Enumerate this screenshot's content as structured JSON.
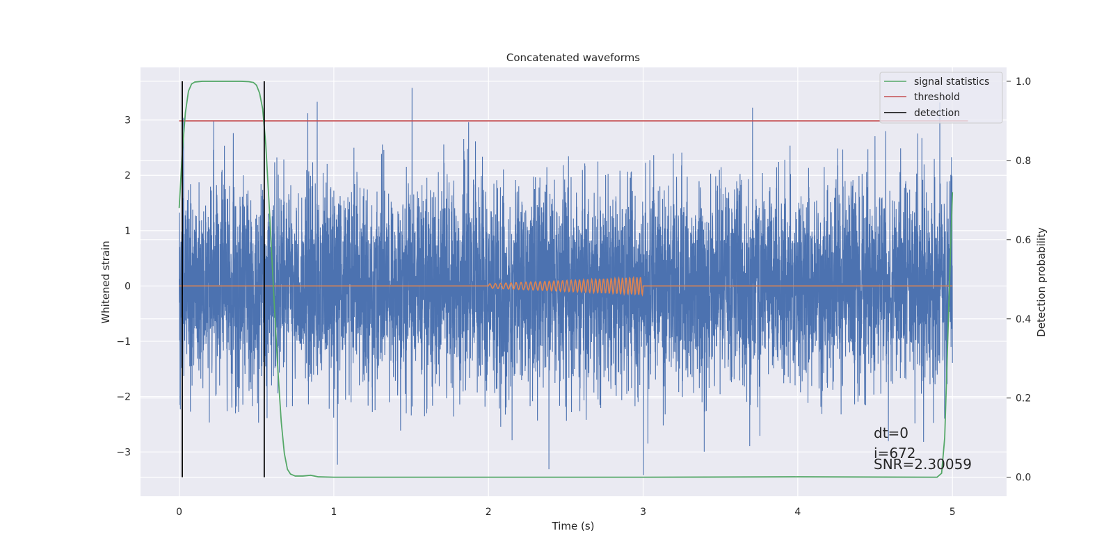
{
  "chart_data": {
    "type": "line",
    "title": "Concatenated waveforms",
    "xlabel": "Time (s)",
    "ylabel": "Whitened strain",
    "y2label": "Detection probability",
    "xlim": [
      -0.25,
      5.35
    ],
    "ylim": [
      -3.8,
      3.95
    ],
    "y2lim": [
      -0.048,
      1.035
    ],
    "xticks": [
      0,
      1,
      2,
      3,
      4,
      5
    ],
    "yticks": [
      -3,
      -2,
      -1,
      0,
      1,
      2,
      3
    ],
    "y2ticks": [
      0.0,
      0.2,
      0.4,
      0.6,
      0.8,
      1.0
    ],
    "xtick_labels": [
      "0",
      "1",
      "2",
      "3",
      "4",
      "5"
    ],
    "ytick_labels": [
      "−3",
      "−2",
      "−1",
      "0",
      "1",
      "2",
      "3"
    ],
    "y2tick_labels": [
      "0.0",
      "0.2",
      "0.4",
      "0.6",
      "0.8",
      "1.0"
    ],
    "grid": true,
    "legend_position": "top-right",
    "legend": [
      {
        "label": "signal statistics",
        "color": "#55a868"
      },
      {
        "label": "threshold",
        "color": "#c44e52"
      },
      {
        "label": "detection",
        "color": "#000000"
      }
    ],
    "colors": {
      "strain": "#4c72b0",
      "template": "#dd8452",
      "signal_statistics": "#55a868",
      "threshold": "#c44e52",
      "detection": "#000000",
      "plot_background": "#eaeaf2",
      "grid": "#ffffff"
    },
    "strain": {
      "x_start": 0,
      "x_end": 5,
      "noise_sigma": 0.92,
      "min": -3.45,
      "max": 3.58
    },
    "template": {
      "x_start": 0,
      "x_end": 5,
      "chirp_start": 2.0,
      "chirp_end": 3.0,
      "peak_amplitude": 0.16
    },
    "threshold": {
      "value": 0.9,
      "x_start": 0,
      "x_end": 5.1
    },
    "signal_statistics": {
      "x": [
        0,
        0.02,
        0.04,
        0.06,
        0.08,
        0.1,
        0.15,
        0.2,
        0.3,
        0.4,
        0.45,
        0.48,
        0.5,
        0.52,
        0.54,
        0.56,
        0.58,
        0.6,
        0.62,
        0.64,
        0.66,
        0.68,
        0.7,
        0.72,
        0.75,
        0.8,
        0.85,
        0.9,
        1.0,
        2.0,
        3.0,
        4.0,
        4.9,
        4.93,
        4.95,
        4.97,
        4.99,
        5.0
      ],
      "y": [
        0.68,
        0.82,
        0.92,
        0.975,
        0.993,
        0.998,
        1.0,
        1.0,
        1.0,
        1.0,
        0.999,
        0.997,
        0.99,
        0.97,
        0.93,
        0.84,
        0.7,
        0.55,
        0.4,
        0.26,
        0.14,
        0.06,
        0.02,
        0.008,
        0.003,
        0.003,
        0.005,
        0.001,
        0.0,
        0.0,
        0.0,
        0.001,
        0.0,
        0.01,
        0.1,
        0.35,
        0.6,
        0.72
      ]
    },
    "detections": [
      0.02,
      0.55
    ],
    "annotations": [
      "dt=0",
      "i=672",
      "SNR=2.30059"
    ]
  }
}
